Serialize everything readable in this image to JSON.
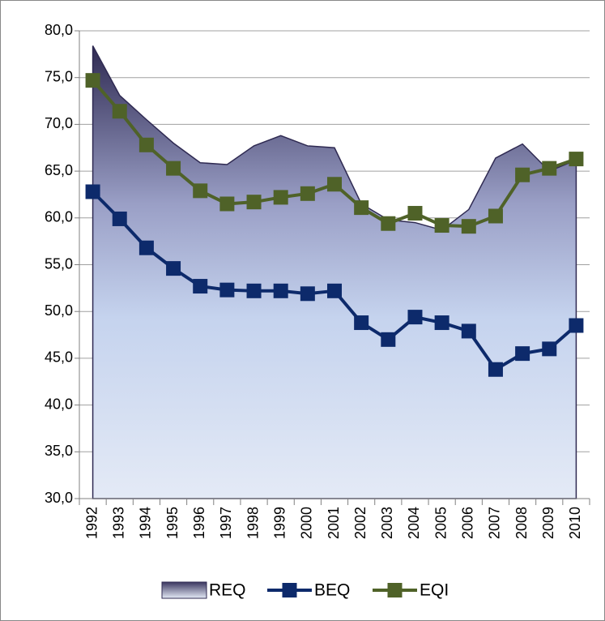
{
  "chart_data": {
    "type": "line",
    "categories": [
      "1992",
      "1993",
      "1994",
      "1995",
      "1996",
      "1997",
      "1998",
      "1999",
      "2000",
      "2001",
      "2002",
      "2003",
      "2004",
      "2005",
      "2006",
      "2007",
      "2008",
      "2009",
      "2010"
    ],
    "series": [
      {
        "name": "REQ",
        "kind": "area",
        "color": "#2f2a52",
        "values": [
          78.4,
          73.1,
          70.5,
          68.0,
          65.9,
          65.7,
          67.7,
          68.8,
          67.7,
          67.5,
          61.5,
          59.8,
          59.5,
          58.7,
          60.9,
          66.4,
          67.9,
          65.0,
          66.2
        ]
      },
      {
        "name": "BEQ",
        "kind": "line",
        "color": "#0d2a6b",
        "values": [
          62.8,
          59.9,
          56.8,
          54.6,
          52.7,
          52.3,
          52.2,
          52.2,
          51.9,
          52.2,
          48.8,
          47.0,
          49.4,
          48.8,
          47.9,
          43.8,
          45.5,
          46.0,
          48.5
        ]
      },
      {
        "name": "EQI",
        "kind": "line",
        "color": "#4f6228",
        "values": [
          74.7,
          71.4,
          67.8,
          65.3,
          62.9,
          61.5,
          61.7,
          62.2,
          62.6,
          63.6,
          61.1,
          59.4,
          60.5,
          59.2,
          59.1,
          60.2,
          64.6,
          65.3,
          66.3
        ]
      }
    ],
    "ylim": [
      30,
      80
    ],
    "yticks": [
      {
        "value": 30,
        "label": "30,0"
      },
      {
        "value": 35,
        "label": "35,0"
      },
      {
        "value": 40,
        "label": "40,0"
      },
      {
        "value": 45,
        "label": "45,0"
      },
      {
        "value": 50,
        "label": "50,0"
      },
      {
        "value": 55,
        "label": "55,0"
      },
      {
        "value": 60,
        "label": "60,0"
      },
      {
        "value": 65,
        "label": "65,0"
      },
      {
        "value": 70,
        "label": "70,0"
      },
      {
        "value": 75,
        "label": "75,0"
      },
      {
        "value": 80,
        "label": "80,0"
      }
    ],
    "grid": true,
    "legend": "bottom"
  }
}
